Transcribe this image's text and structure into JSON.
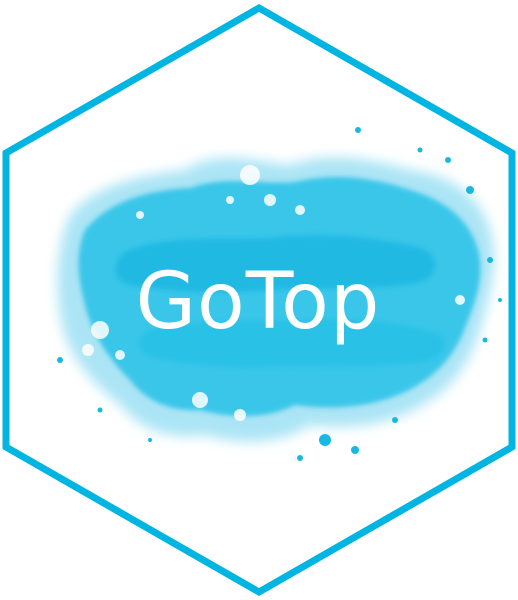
{
  "logo": {
    "text": "GoTop",
    "border_color": "#00b5e2",
    "splash_color": "#1ec0e6",
    "splash_light": "#7fd9f0",
    "background": "#ffffff",
    "text_color": "#ffffff",
    "icon": "watercolor-splash-icon"
  }
}
